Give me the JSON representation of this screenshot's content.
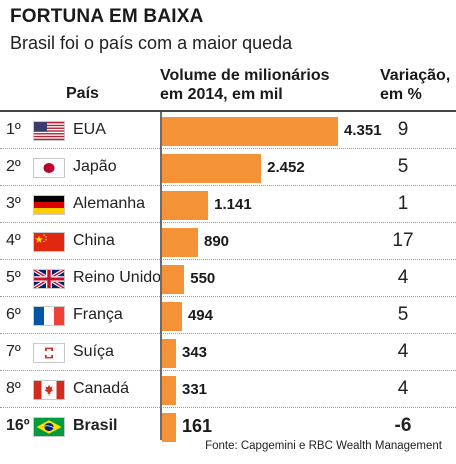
{
  "title": "FORTUNA EM BAIXA",
  "subtitle": "Brasil foi o país com a maior queda",
  "headers": {
    "country": "País",
    "volume_line1": "Volume de milionários",
    "volume_line2": "em 2014, em mil",
    "variation_line1": "Variação,",
    "variation_line2": "em %"
  },
  "source": "Fonte: Capgemini e RBC Wealth Management",
  "bar_color": "#f39237",
  "chart_data": {
    "type": "bar",
    "orientation": "horizontal",
    "categories": [
      "EUA",
      "Japão",
      "Alemanha",
      "China",
      "Reino Unido",
      "França",
      "Suíça",
      "Canadá",
      "Brasil"
    ],
    "values": [
      4351,
      2452,
      1141,
      890,
      550,
      494,
      343,
      331,
      161
    ],
    "value_labels": [
      "4.351",
      "2.452",
      "1.141",
      "890",
      "550",
      "494",
      "343",
      "331",
      "161"
    ],
    "ranks": [
      "1º",
      "2º",
      "3º",
      "4º",
      "5º",
      "6º",
      "7º",
      "8º",
      "16º"
    ],
    "variation_pct": [
      "9",
      "5",
      "1",
      "17",
      "4",
      "5",
      "4",
      "4",
      "-6"
    ],
    "flags": [
      "flag-usa",
      "flag-japan",
      "flag-germany",
      "flag-china",
      "flag-uk",
      "flag-france",
      "flag-switzerland",
      "flag-canada",
      "flag-brazil"
    ],
    "xlim": [
      0,
      4351
    ],
    "grid": false,
    "legend": "none"
  }
}
